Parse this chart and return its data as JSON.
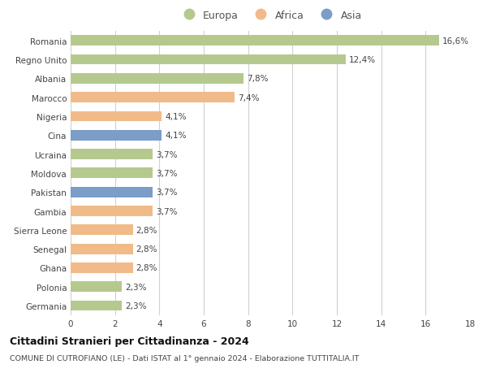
{
  "countries": [
    "Romania",
    "Regno Unito",
    "Albania",
    "Marocco",
    "Nigeria",
    "Cina",
    "Ucraina",
    "Moldova",
    "Pakistan",
    "Gambia",
    "Sierra Leone",
    "Senegal",
    "Ghana",
    "Polonia",
    "Germania"
  ],
  "values": [
    16.6,
    12.4,
    7.8,
    7.4,
    4.1,
    4.1,
    3.7,
    3.7,
    3.7,
    3.7,
    2.8,
    2.8,
    2.8,
    2.3,
    2.3
  ],
  "labels": [
    "16,6%",
    "12,4%",
    "7,8%",
    "7,4%",
    "4,1%",
    "4,1%",
    "3,7%",
    "3,7%",
    "3,7%",
    "3,7%",
    "2,8%",
    "2,8%",
    "2,8%",
    "2,3%",
    "2,3%"
  ],
  "continents": [
    "Europa",
    "Europa",
    "Europa",
    "Africa",
    "Africa",
    "Asia",
    "Europa",
    "Europa",
    "Asia",
    "Africa",
    "Africa",
    "Africa",
    "Africa",
    "Europa",
    "Europa"
  ],
  "colors": {
    "Europa": "#b5c98e",
    "Africa": "#f0bb89",
    "Asia": "#7b9dc7"
  },
  "title": "Cittadini Stranieri per Cittadinanza - 2024",
  "subtitle": "COMUNE DI CUTROFIANO (LE) - Dati ISTAT al 1° gennaio 2024 - Elaborazione TUTTITALIA.IT",
  "xlim": [
    0,
    18
  ],
  "xticks": [
    0,
    2,
    4,
    6,
    8,
    10,
    12,
    14,
    16,
    18
  ],
  "background_color": "#ffffff",
  "grid_color": "#d0d0d0",
  "bar_height": 0.55
}
